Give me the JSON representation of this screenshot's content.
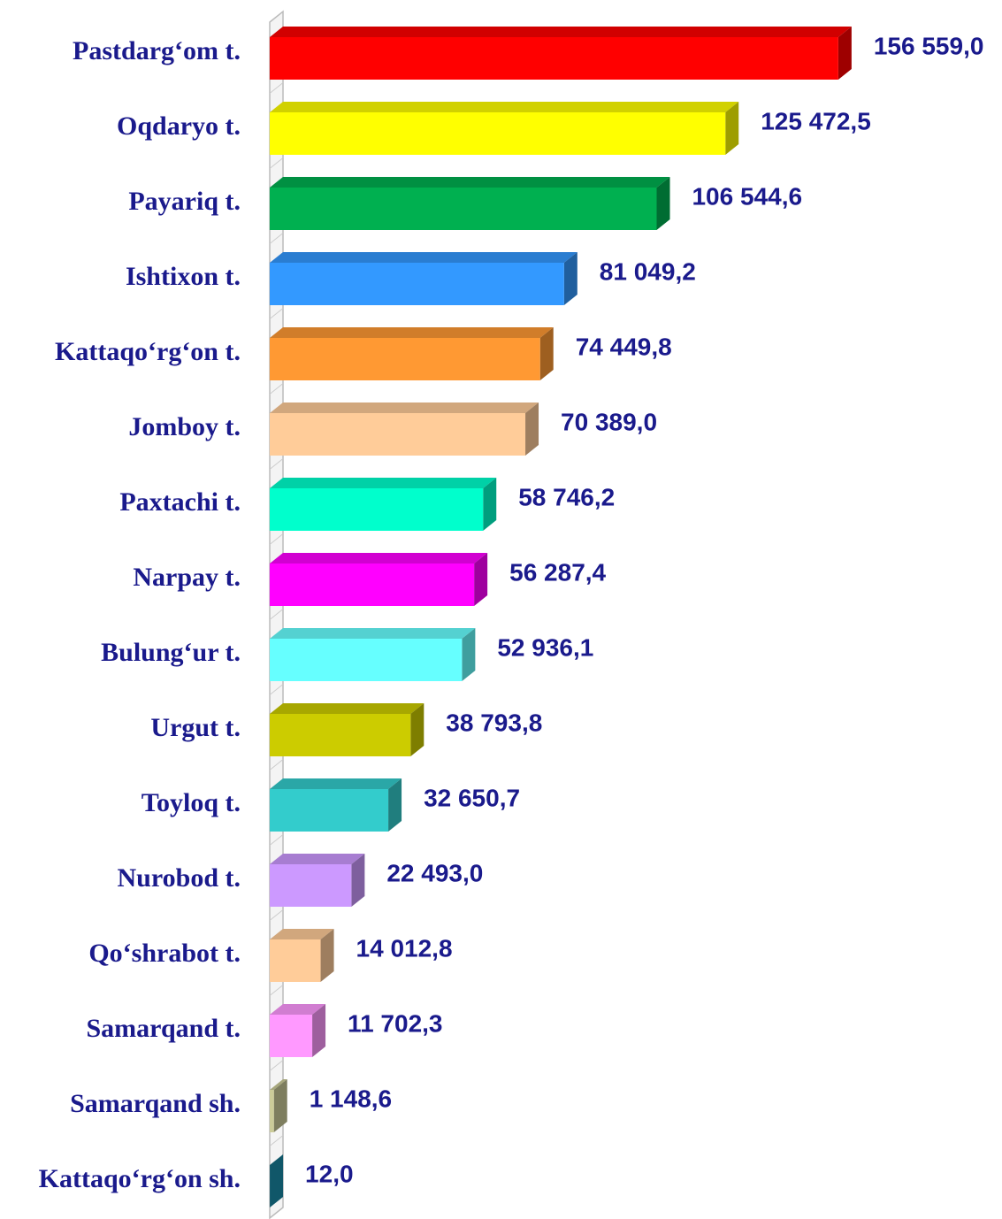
{
  "chart_data": {
    "type": "bar",
    "orientation": "horizontal",
    "categories": [
      "Pastdarg‘om t.",
      "Oqdaryo t.",
      "Payariq t.",
      "Ishtixon t.",
      "Kattaqo‘rg‘on t.",
      "Jomboy t.",
      "Paxtachi t.",
      "Narpay t.",
      "Bulung‘ur t.",
      "Urgut t.",
      "Toyloq t.",
      "Nurobod t.",
      "Qo‘shrabot t.",
      "Samarqand t.",
      "Samarqand sh.",
      "Kattaqo‘rg‘on sh."
    ],
    "values": [
      156559.0,
      125472.5,
      106544.6,
      81049.2,
      74449.8,
      70389.0,
      58746.2,
      56287.4,
      52936.1,
      38793.8,
      32650.7,
      22493.0,
      14012.8,
      11702.3,
      1148.6,
      12.0
    ],
    "value_labels": [
      "156 559,0",
      "125 472,5",
      "106 544,6",
      "81 049,2",
      "74 449,8",
      "70 389,0",
      "58 746,2",
      "56 287,4",
      "52 936,1",
      "38 793,8",
      "32 650,7",
      "22 493,0",
      "14 012,8",
      "11 702,3",
      "1 148,6",
      "12,0"
    ],
    "colors": [
      "#ff0000",
      "#ffff00",
      "#00b050",
      "#3399ff",
      "#ff9933",
      "#ffcc99",
      "#00ffcc",
      "#ff00ff",
      "#66ffff",
      "#cccc00",
      "#33cccc",
      "#cc99ff",
      "#ffcc99",
      "#ff99ff",
      "#cccc99",
      "#1a8caa"
    ],
    "xlim": [
      0,
      160000
    ]
  }
}
